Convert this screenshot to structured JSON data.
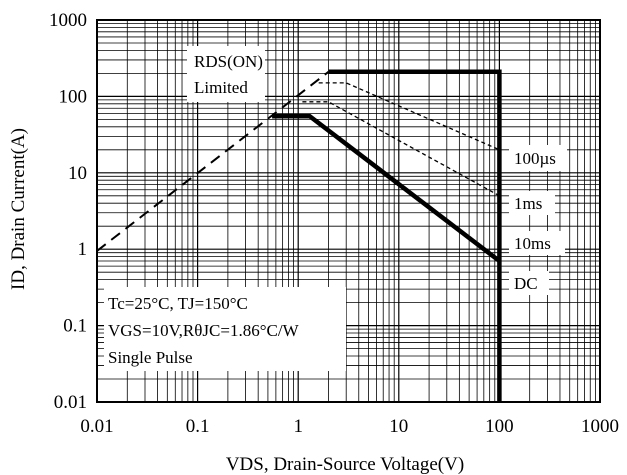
{
  "chart_data": {
    "type": "line",
    "x_scale": "log",
    "y_scale": "log",
    "xlim": [
      0.01,
      1000
    ],
    "ylim": [
      0.01,
      1000
    ],
    "grid": true,
    "xlabel": "VDS, Drain-Source Voltage(V)",
    "ylabel": "ID, Drain Current(A)",
    "x_ticks": [
      0.01,
      0.1,
      1,
      10,
      100,
      1000
    ],
    "y_ticks": [
      0.01,
      0.1,
      1,
      10,
      100,
      1000
    ],
    "x_tick_labels": [
      "0.01",
      "0.1",
      "1",
      "10",
      "100",
      "1000"
    ],
    "y_tick_labels": [
      "0.01",
      "0.1",
      "1",
      "10",
      "100",
      "1000"
    ],
    "series": [
      {
        "name": "RDS(ON) Limited",
        "style": "long-dash",
        "points": [
          [
            0.01,
            0.95
          ],
          [
            2.0,
            210
          ]
        ]
      },
      {
        "name": "100µs",
        "style": "short-dash",
        "points": [
          [
            2.0,
            210
          ],
          [
            100,
            210
          ]
        ]
      },
      {
        "name": "1ms",
        "style": "short-dash",
        "points": [
          [
            1.6,
            150
          ],
          [
            3.0,
            150
          ],
          [
            100,
            20
          ]
        ]
      },
      {
        "name": "10ms",
        "style": "short-dash",
        "points": [
          [
            1.1,
            85
          ],
          [
            2.0,
            85
          ],
          [
            100,
            5
          ]
        ]
      },
      {
        "name": "DC",
        "style": "solid-thick",
        "points": [
          [
            0.55,
            55
          ],
          [
            1.3,
            55
          ],
          [
            100,
            0.7
          ]
        ]
      },
      {
        "name": "",
        "style": "solid-thick",
        "points": [
          [
            2.0,
            210
          ],
          [
            100,
            210
          ],
          [
            100,
            0.01
          ]
        ]
      }
    ],
    "annotations": {
      "rds_label_1": "RDS(ON)",
      "rds_label_2": "Limited",
      "pulse_100us": "100µs",
      "pulse_1ms": "1ms",
      "pulse_10ms": "10ms",
      "pulse_dc": "DC",
      "cond_1": "Tc=25°C, TJ=150°C",
      "cond_2": "VGS=10V,RθJC=1.86°C/W",
      "cond_3": "Single Pulse"
    }
  }
}
